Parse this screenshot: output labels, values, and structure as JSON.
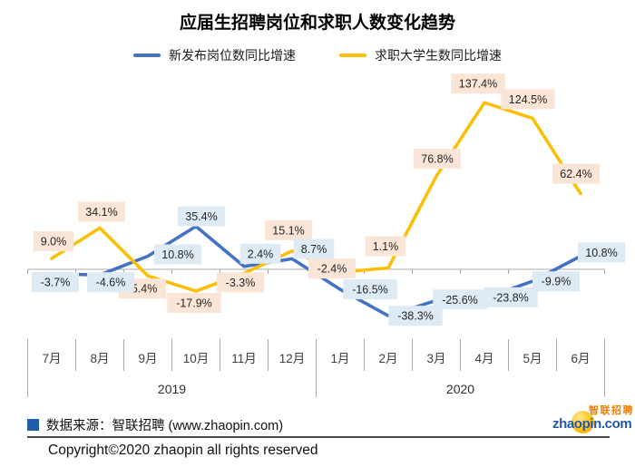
{
  "title": "应届生招聘岗位和求职人数变化趋势",
  "legend": [
    {
      "label": "新发布岗位数同比增速",
      "color": "#4472c4"
    },
    {
      "label": "求职大学生数同比增速",
      "color": "#fcbf08"
    }
  ],
  "chart_data": {
    "type": "line",
    "x": [
      "7月",
      "8月",
      "9月",
      "10月",
      "11月",
      "12月",
      "1月",
      "2月",
      "3月",
      "4月",
      "5月",
      "6月"
    ],
    "year_groups": [
      {
        "label": "2019",
        "start": 0,
        "count": 6
      },
      {
        "label": "2020",
        "start": 6,
        "count": 6
      }
    ],
    "series": [
      {
        "name": "新发布岗位数同比增速",
        "color": "#4472c4",
        "label_bg": "#deebf4",
        "values": [
          -3.7,
          -4.6,
          10.8,
          35.4,
          2.4,
          8.7,
          -16.5,
          -38.3,
          -25.6,
          -23.8,
          -9.9,
          10.8
        ],
        "labels": [
          "-3.7%",
          "-4.6%",
          "10.8%",
          "35.4%",
          "2.4%",
          "8.7%",
          "-16.5%",
          "-38.3%",
          "-25.6%",
          "-23.8%",
          "-9.9%",
          "10.8%"
        ]
      },
      {
        "name": "求职大学生数同比增速",
        "color": "#fcbf08",
        "label_bg": "#fbe5d6",
        "values": [
          9.0,
          34.1,
          -5.4,
          -17.9,
          -3.3,
          15.1,
          -2.4,
          1.1,
          76.8,
          137.4,
          124.5,
          62.4
        ],
        "labels": [
          "9.0%",
          "34.1%",
          "-5.4%",
          "-17.9%",
          "-3.3%",
          "15.1%",
          "-2.4%",
          "1.1%",
          "76.8%",
          "137.4%",
          "124.5%",
          "62.4%"
        ]
      }
    ],
    "unit": "%",
    "ylim": [
      -50,
      150
    ],
    "grid": false,
    "legend_position": "top",
    "axis_color": "#a9a9a9",
    "label_text_color": "#262626"
  },
  "footer": {
    "source": "数据来源：智联招聘 (www.zhaopin.com)",
    "square_color": "#1f5ca9",
    "copyright": "Copyright©2020 zhaopin all rights reserved"
  },
  "logo": {
    "text": "zhaopin.com",
    "cn": "智联招聘"
  }
}
